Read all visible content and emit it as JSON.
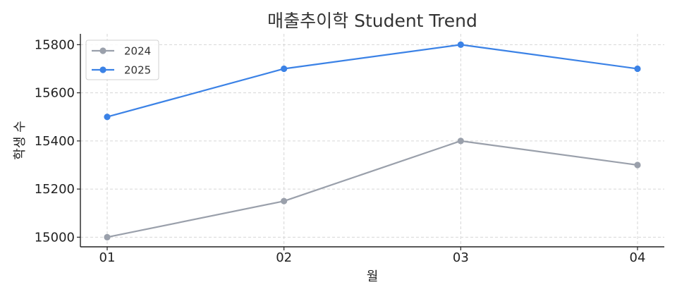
{
  "chart_data": {
    "type": "line",
    "title": "매출추이학 Student Trend",
    "xlabel": "월",
    "ylabel": "학생 수",
    "categories": [
      "01",
      "02",
      "03",
      "04"
    ],
    "ylim": [
      14960,
      15845
    ],
    "yticks": [
      15000,
      15200,
      15400,
      15600,
      15800
    ],
    "grid": true,
    "legend_position": "top-left",
    "series": [
      {
        "name": "2024",
        "color": "#9aa0ab",
        "values": [
          15000,
          15150,
          15400,
          15300
        ]
      },
      {
        "name": "2025",
        "color": "#3b82e6",
        "values": [
          15500,
          15700,
          15800,
          15700
        ]
      }
    ]
  }
}
